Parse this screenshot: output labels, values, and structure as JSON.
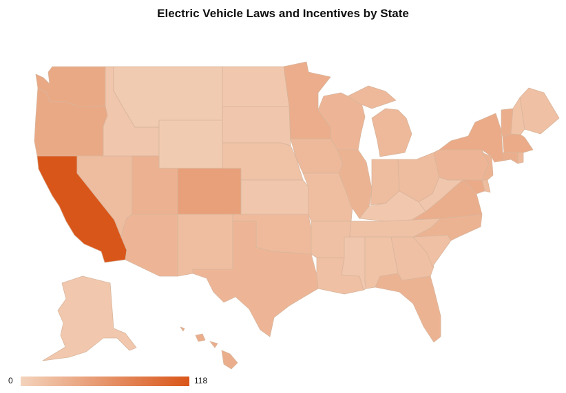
{
  "title": "Electric Vehicle Laws and Incentives by State",
  "legend": {
    "min_label": "0",
    "max_label": "118",
    "min": 0,
    "max": 118,
    "color_low": "#f3d3bc",
    "color_high": "#d9561a"
  },
  "chart_data": {
    "type": "choropleth",
    "title": "Electric Vehicle Laws and Incentives by State",
    "scale": {
      "min": 0,
      "max": 118,
      "low_color": "#f3d3bc",
      "high_color": "#d9561a"
    },
    "regions": [
      {
        "id": "WA",
        "value": 40
      },
      {
        "id": "OR",
        "value": 40
      },
      {
        "id": "CA",
        "value": 118
      },
      {
        "id": "NV",
        "value": 22
      },
      {
        "id": "ID",
        "value": 12
      },
      {
        "id": "MT",
        "value": 8
      },
      {
        "id": "WY",
        "value": 8
      },
      {
        "id": "UT",
        "value": 32
      },
      {
        "id": "AZ",
        "value": 28
      },
      {
        "id": "CO",
        "value": 48
      },
      {
        "id": "NM",
        "value": 20
      },
      {
        "id": "ND",
        "value": 10
      },
      {
        "id": "SD",
        "value": 12
      },
      {
        "id": "NE",
        "value": 15
      },
      {
        "id": "KS",
        "value": 12
      },
      {
        "id": "OK",
        "value": 24
      },
      {
        "id": "TX",
        "value": 28
      },
      {
        "id": "MN",
        "value": 36
      },
      {
        "id": "IA",
        "value": 25
      },
      {
        "id": "MO",
        "value": 20
      },
      {
        "id": "AR",
        "value": 18
      },
      {
        "id": "LA",
        "value": 18
      },
      {
        "id": "WI",
        "value": 28
      },
      {
        "id": "IL",
        "value": 30
      },
      {
        "id": "MI",
        "value": 25
      },
      {
        "id": "IN",
        "value": 22
      },
      {
        "id": "OH",
        "value": 22
      },
      {
        "id": "KY",
        "value": 10
      },
      {
        "id": "TN",
        "value": 16
      },
      {
        "id": "MS",
        "value": 12
      },
      {
        "id": "AL",
        "value": 15
      },
      {
        "id": "GA",
        "value": 18
      },
      {
        "id": "FL",
        "value": 30
      },
      {
        "id": "SC",
        "value": 18
      },
      {
        "id": "NC",
        "value": 30
      },
      {
        "id": "VA",
        "value": 35
      },
      {
        "id": "WV",
        "value": 12
      },
      {
        "id": "PA",
        "value": 28
      },
      {
        "id": "NY",
        "value": 38
      },
      {
        "id": "VT",
        "value": 35
      },
      {
        "id": "NH",
        "value": 15
      },
      {
        "id": "ME",
        "value": 18
      },
      {
        "id": "MA",
        "value": 38
      },
      {
        "id": "CT",
        "value": 35
      },
      {
        "id": "RI",
        "value": 25
      },
      {
        "id": "NJ",
        "value": 30
      },
      {
        "id": "DE",
        "value": 22
      },
      {
        "id": "MD",
        "value": 38
      },
      {
        "id": "AK",
        "value": 10
      },
      {
        "id": "HI",
        "value": 35
      }
    ]
  }
}
